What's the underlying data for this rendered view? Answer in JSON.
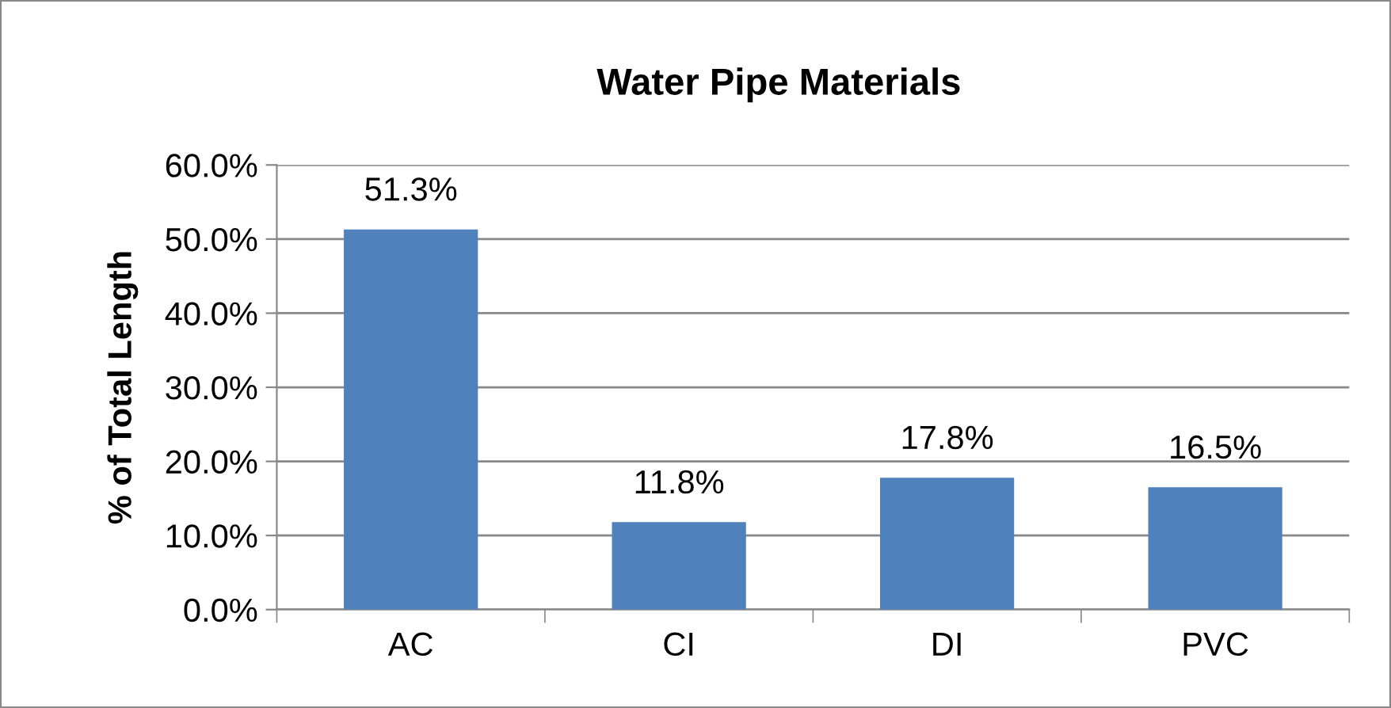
{
  "chart_data": {
    "type": "bar",
    "title": "Water Pipe Materials",
    "ylabel": "% of Total Length",
    "categories": [
      "AC",
      "CI",
      "DI",
      "PVC"
    ],
    "values": [
      51.3,
      11.8,
      17.8,
      16.5
    ],
    "value_labels": [
      "51.3%",
      "11.8%",
      "17.8%",
      "16.5%"
    ],
    "color": "#4f81bd",
    "ylim": [
      0,
      60
    ],
    "yticks": [
      {
        "value": 0,
        "label": "0.0%"
      },
      {
        "value": 10,
        "label": "10.0%"
      },
      {
        "value": 20,
        "label": "20.0%"
      },
      {
        "value": 30,
        "label": "30.0%"
      },
      {
        "value": 40,
        "label": "40.0%"
      },
      {
        "value": 50,
        "label": "50.0%"
      },
      {
        "value": 60,
        "label": "60.0%"
      }
    ],
    "grid": "y",
    "legend": false
  }
}
